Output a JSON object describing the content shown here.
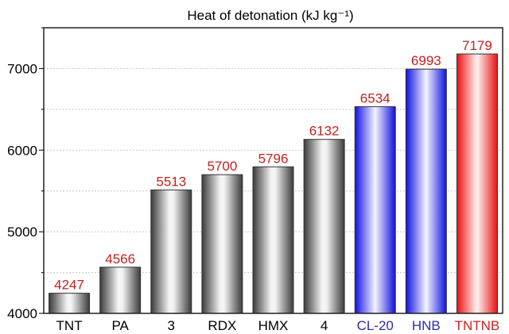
{
  "chart_data": {
    "type": "bar",
    "title": "Heat of detonation (kJ kg⁻¹)",
    "xlabel": "",
    "ylabel": "",
    "ylim": [
      4000,
      7500
    ],
    "yticks": [
      4000,
      5000,
      6000,
      7000
    ],
    "grid": true,
    "categories": [
      "TNT",
      "PA",
      "3",
      "RDX",
      "HMX",
      "4",
      "CL-20",
      "HNB",
      "TNTNB"
    ],
    "values": [
      4247,
      4566,
      5513,
      5700,
      5796,
      6132,
      6534,
      6993,
      7179
    ],
    "bar_colors": [
      "gray",
      "gray",
      "gray",
      "gray",
      "gray",
      "gray",
      "blue",
      "blue",
      "red"
    ],
    "label_colors": [
      "#000000",
      "#000000",
      "#000000",
      "#000000",
      "#000000",
      "#000000",
      "#2b2bb0",
      "#2b2bb0",
      "#d42020"
    ],
    "data_label_color": "#c81e1e"
  }
}
